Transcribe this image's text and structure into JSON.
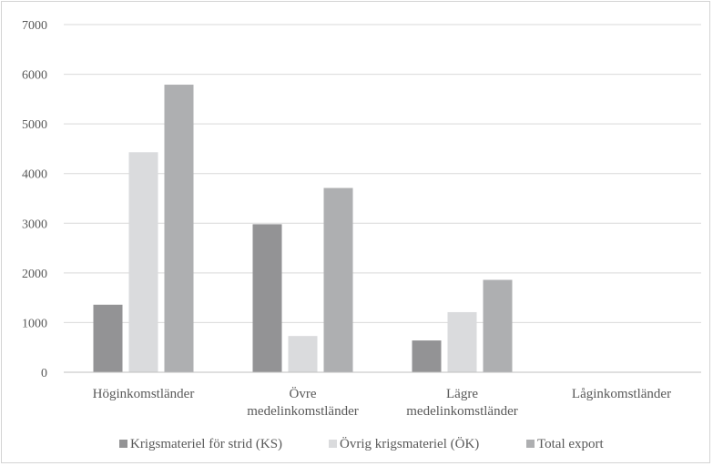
{
  "chart_data": {
    "type": "bar",
    "categories": [
      "Höginkomstländer",
      "Övre medelinkomstländer",
      "Lägre medelinkomstländer",
      "Låginkomstländer"
    ],
    "series": [
      {
        "name": "Krigsmateriel för strid (KS)",
        "color": "#939395",
        "values": [
          1360,
          2980,
          640,
          0
        ]
      },
      {
        "name": "Övrig krigsmateriel (ÖK)",
        "color": "#dadbdd",
        "values": [
          4430,
          730,
          1210,
          0
        ]
      },
      {
        "name": "Total export",
        "color": "#aeafb1",
        "values": [
          5790,
          3710,
          1860,
          0
        ]
      }
    ],
    "ylim": [
      0,
      7000
    ],
    "yticks": [
      0,
      1000,
      2000,
      3000,
      4000,
      5000,
      6000,
      7000
    ],
    "grid": true,
    "legend": "bottom"
  }
}
